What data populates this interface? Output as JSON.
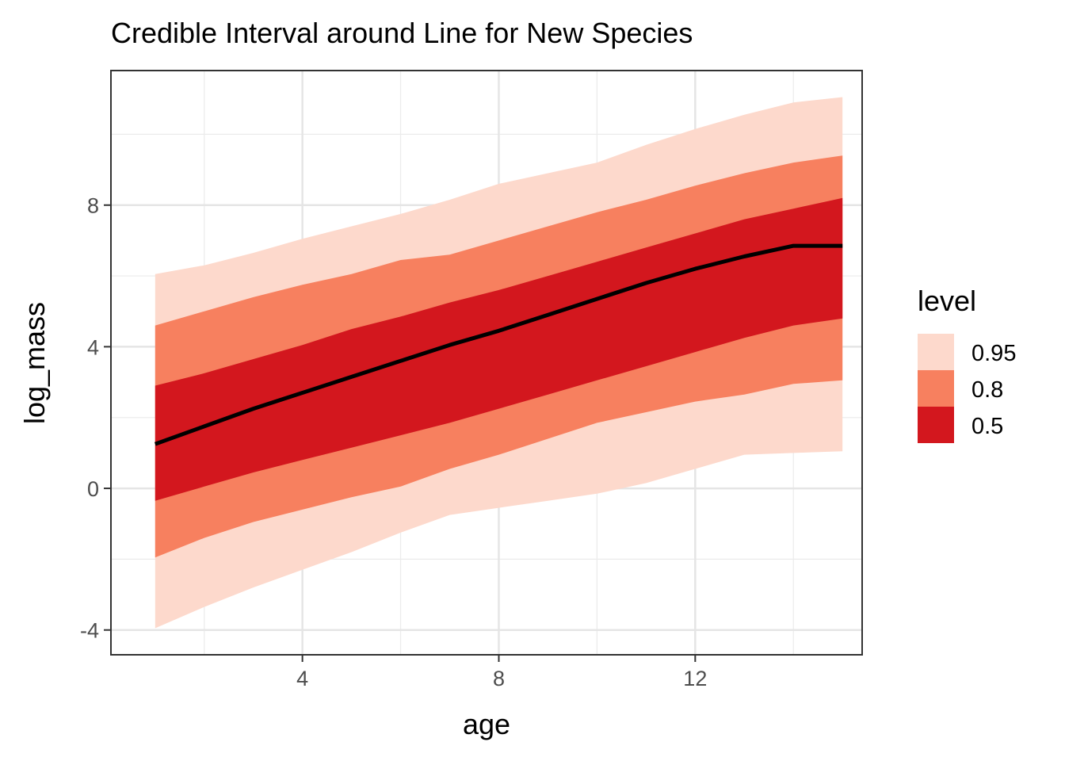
{
  "chart_data": {
    "type": "area",
    "title": "Credible Interval around Line for New Species",
    "xlabel": "age",
    "ylabel": "log_mass",
    "xlim": [
      0.1,
      15.4
    ],
    "ylim": [
      -4.7,
      11.8
    ],
    "x_ticks": [
      4,
      8,
      12
    ],
    "x_tick_labels": [
      "4",
      "8",
      "12"
    ],
    "x_minor_ticks": [
      2,
      6,
      10,
      14
    ],
    "y_ticks": [
      -4,
      0,
      4,
      8
    ],
    "y_tick_labels": [
      "-4",
      "0",
      "4",
      "8"
    ],
    "y_minor_ticks": [
      -2,
      2,
      6,
      10
    ],
    "grid": true,
    "legend": {
      "title": "level",
      "placement": "right",
      "entries": [
        {
          "label": "0.95",
          "color": "#FDD9CC"
        },
        {
          "label": "0.8",
          "color": "#F7805F"
        },
        {
          "label": "0.5",
          "color": "#D3171E"
        }
      ]
    },
    "x": [
      1,
      2,
      3,
      4,
      5,
      6,
      7,
      8,
      9,
      10,
      11,
      12,
      13,
      14,
      15
    ],
    "line": {
      "color": "#000000",
      "values": [
        1.25,
        1.75,
        2.25,
        2.7,
        3.15,
        3.6,
        4.05,
        4.45,
        4.9,
        5.35,
        5.8,
        6.2,
        6.55,
        6.85,
        6.85
      ]
    },
    "bands": [
      {
        "level": "0.95",
        "color": "#FDD9CC",
        "lower": [
          -3.95,
          -3.35,
          -2.8,
          -2.3,
          -1.8,
          -1.25,
          -0.75,
          -0.55,
          -0.35,
          -0.15,
          0.15,
          0.55,
          0.95,
          1.0,
          1.05
        ],
        "upper": [
          6.05,
          6.3,
          6.65,
          7.05,
          7.4,
          7.75,
          8.15,
          8.6,
          8.9,
          9.2,
          9.7,
          10.15,
          10.55,
          10.9,
          11.05
        ]
      },
      {
        "level": "0.8",
        "color": "#F7805F",
        "lower": [
          -1.95,
          -1.4,
          -0.95,
          -0.6,
          -0.25,
          0.05,
          0.55,
          0.95,
          1.4,
          1.85,
          2.15,
          2.45,
          2.65,
          2.95,
          3.05
        ],
        "upper": [
          4.6,
          5.0,
          5.4,
          5.75,
          6.05,
          6.45,
          6.6,
          7.0,
          7.4,
          7.8,
          8.15,
          8.55,
          8.9,
          9.2,
          9.4
        ]
      },
      {
        "level": "0.5",
        "color": "#D3171E",
        "lower": [
          -0.35,
          0.05,
          0.45,
          0.8,
          1.15,
          1.5,
          1.85,
          2.25,
          2.65,
          3.05,
          3.45,
          3.85,
          4.25,
          4.6,
          4.8
        ],
        "upper": [
          2.9,
          3.25,
          3.65,
          4.05,
          4.5,
          4.85,
          5.25,
          5.6,
          6.0,
          6.4,
          6.8,
          7.2,
          7.6,
          7.9,
          8.2
        ]
      }
    ]
  }
}
